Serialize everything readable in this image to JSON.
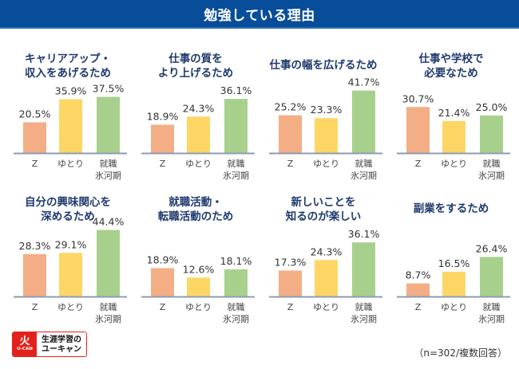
{
  "header": {
    "title": "勉強している理由"
  },
  "colors": {
    "header_bg": "#074d9a",
    "title_text": "#1f3a6e",
    "Z": "#f3ae85",
    "ゆとり": "#fdd666",
    "就職氷河期": "#a8d08d",
    "axis": "#8e9bb5"
  },
  "chart_data": {
    "type": "bar",
    "title": "勉強している理由",
    "value_unit": "%",
    "categories": [
      "Z",
      "ゆとり",
      "就職氷河期"
    ],
    "category_labels": [
      [
        "Z"
      ],
      [
        "ゆとり"
      ],
      [
        "就職",
        "氷河期"
      ]
    ],
    "panels": [
      {
        "title_lines": [
          "キャリアアップ・",
          "収入をあげるため"
        ],
        "values": [
          20.5,
          35.9,
          37.5
        ]
      },
      {
        "title_lines": [
          "仕事の質を",
          "より上げるため"
        ],
        "values": [
          18.9,
          24.3,
          36.1
        ]
      },
      {
        "title_lines": [
          "仕事の幅を広げるため"
        ],
        "values": [
          25.2,
          23.3,
          41.7
        ]
      },
      {
        "title_lines": [
          "仕事や学校で",
          "必要なため"
        ],
        "values": [
          30.7,
          21.4,
          25.0
        ]
      },
      {
        "title_lines": [
          "自分の興味関心を",
          "深めるため"
        ],
        "values": [
          28.3,
          29.1,
          44.4
        ]
      },
      {
        "title_lines": [
          "就職活動・",
          "転職活動のため"
        ],
        "values": [
          18.9,
          12.6,
          18.1
        ]
      },
      {
        "title_lines": [
          "新しいことを",
          "知るのが楽しい"
        ],
        "values": [
          17.3,
          24.3,
          36.1
        ]
      },
      {
        "title_lines": [
          "副業をするため"
        ],
        "values": [
          8.7,
          16.5,
          26.4
        ]
      }
    ],
    "ylim": [
      0,
      45
    ],
    "grid": false,
    "legend": "none"
  },
  "footer": {
    "logo_mark": "U-CAN",
    "logo_glyph": "⽕",
    "logo_line1": "生涯学習の",
    "logo_line2": "ユーキャン",
    "note": "（n=302/複数回答）"
  }
}
